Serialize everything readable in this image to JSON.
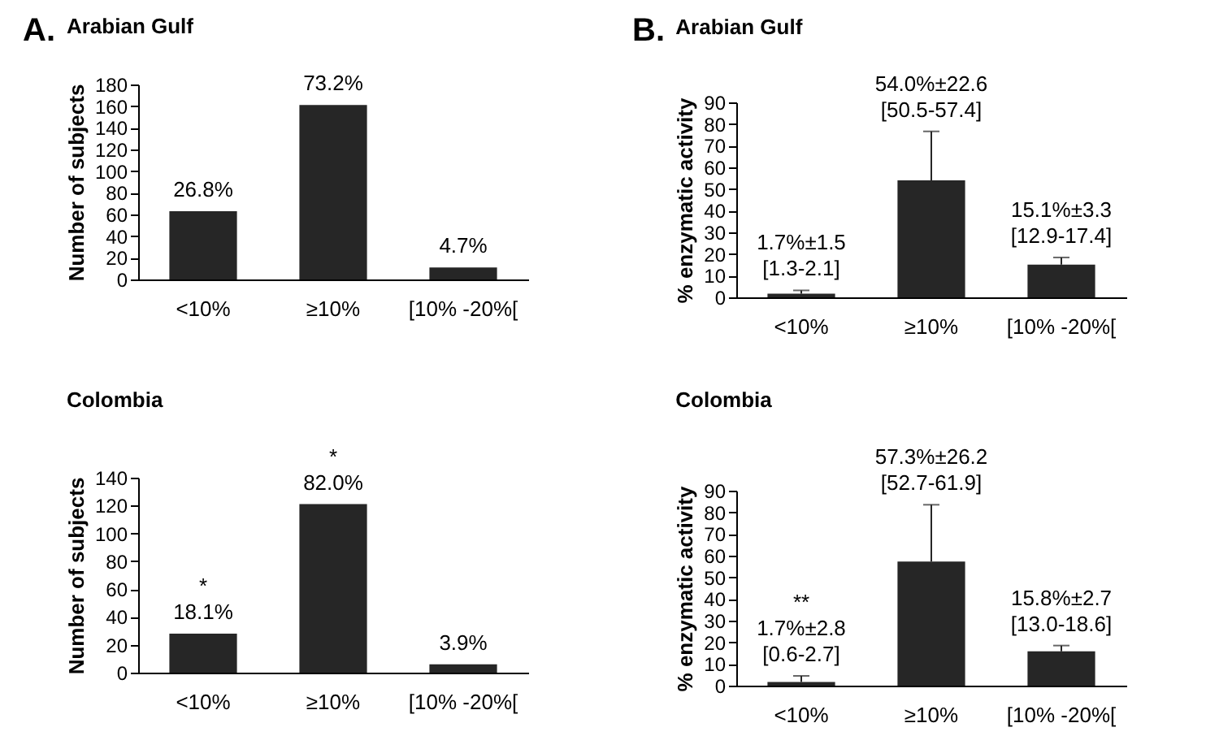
{
  "chart_data": [
    {
      "type": "bar",
      "title": "Arabian Gulf",
      "ylabel": "Number of subjects",
      "annotations": [
        "A.",
        {
          "text": "26.8%",
          "x": "<10%",
          "y": 63
        },
        {
          "text": "73.2%",
          "x": "≥10%",
          "y": 161
        },
        {
          "text": "4.7%",
          "x": "[10% -20%[",
          "y": 11
        }
      ],
      "categories": [
        "<10%",
        "≥10%",
        "[10% -20%["
      ],
      "values": [
        63,
        161,
        11
      ],
      "color": "#262626",
      "ylim": [
        0,
        180
      ],
      "yticks": [
        0,
        20,
        40,
        60,
        80,
        100,
        120,
        140,
        160,
        180
      ]
    },
    {
      "type": "bar",
      "title": "Arabian Gulf",
      "ylabel": "% enzymatic activity",
      "annotations": [
        "B."
      ],
      "categories": [
        "<10%",
        "≥10%",
        "[10% -20%["
      ],
      "values": [
        1.7,
        54.0,
        15.1
      ],
      "errors": [
        [
          1.7,
          3.2
        ],
        [
          54.0,
          76.6
        ],
        [
          15.1,
          18.4
        ]
      ],
      "color": "#262626",
      "value_labels": [
        "1.7%±1.5\n[1.3-2.1]",
        "54.0%±22.6\n[50.5-57.4]",
        "15.1%±3.3\n[12.9-17.4]"
      ],
      "ylim": [
        0,
        90
      ],
      "yticks": [
        0,
        10,
        20,
        30,
        40,
        50,
        60,
        70,
        80,
        90
      ]
    },
    {
      "type": "bar",
      "title": "Colombia",
      "ylabel": "Number of subjects",
      "annotations": [
        {
          "text": "*\n18.1%",
          "x": "<10%",
          "y": 28
        },
        {
          "text": "*\n82.0%",
          "x": "≥10%",
          "y": 121
        },
        {
          "text": "3.9%",
          "x": "[10% -20%[",
          "y": 6
        }
      ],
      "categories": [
        "<10%",
        "≥10%",
        "[10% -20%["
      ],
      "values": [
        28,
        121,
        6
      ],
      "color": "#262626",
      "ylim": [
        0,
        140
      ],
      "yticks": [
        0,
        20,
        40,
        60,
        80,
        100,
        120,
        140
      ]
    },
    {
      "type": "bar",
      "title": "Colombia",
      "ylabel": "% enzymatic activity",
      "categories": [
        "<10%",
        "≥10%",
        "[10% -20%["
      ],
      "values": [
        1.7,
        57.3,
        15.8
      ],
      "errors": [
        [
          1.7,
          4.5
        ],
        [
          57.3,
          83.5
        ],
        [
          15.8,
          18.5
        ]
      ],
      "color": "#262626",
      "value_labels": [
        "**\n1.7%±2.8\n[0.6-2.7]",
        "57.3%±26.2\n[52.7-61.9]",
        "15.8%±2.7\n[13.0-18.6]"
      ],
      "ylim": [
        0,
        90
      ],
      "yticks": [
        0,
        10,
        20,
        30,
        40,
        50,
        60,
        70,
        80,
        90
      ]
    }
  ]
}
